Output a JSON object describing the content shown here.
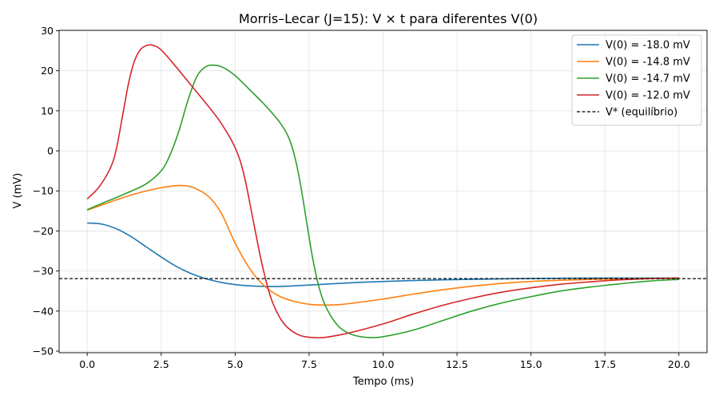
{
  "chart_data": {
    "type": "line",
    "title": "Morris–Lecar (J=15): V × t para diferentes V(0)",
    "xlabel": "Tempo (ms)",
    "ylabel": "V (mV)",
    "xlim": [
      -0.95,
      20.95
    ],
    "ylim": [
      -50.4,
      30.1
    ],
    "xticks": [
      0,
      2.5,
      5,
      7.5,
      10,
      12.5,
      15,
      17.5,
      20
    ],
    "xtick_labels": [
      "0.0",
      "2.5",
      "5.0",
      "7.5",
      "10.0",
      "12.5",
      "15.0",
      "17.5",
      "20.0"
    ],
    "yticks": [
      -50,
      -40,
      -30,
      -20,
      -10,
      0,
      10,
      20,
      30
    ],
    "ytick_labels": [
      "−50",
      "−40",
      "−30",
      "−20",
      "−10",
      "0",
      "10",
      "20",
      "30"
    ],
    "grid": true,
    "legend_position": "top-right",
    "series": [
      {
        "name": "V(0) = -18.0 mV",
        "color": "#1f77b4",
        "x": [
          0,
          0.5,
          1,
          1.5,
          2,
          2.5,
          3,
          3.5,
          4,
          4.5,
          5,
          5.5,
          6,
          6.5,
          7,
          8,
          9,
          10,
          12,
          14,
          16,
          18,
          20
        ],
        "y": [
          -18.0,
          -18.3,
          -19.5,
          -21.5,
          -24.0,
          -26.5,
          -28.8,
          -30.6,
          -31.9,
          -32.8,
          -33.4,
          -33.7,
          -33.85,
          -33.85,
          -33.7,
          -33.3,
          -32.9,
          -32.6,
          -32.2,
          -31.95,
          -31.8,
          -31.75,
          -31.75
        ]
      },
      {
        "name": "V(0) = -14.8 mV",
        "color": "#ff7f0e",
        "x": [
          0,
          0.5,
          1,
          1.5,
          2,
          2.5,
          3,
          3.3,
          3.6,
          4,
          4.3,
          4.6,
          5,
          5.5,
          6,
          6.5,
          7,
          7.5,
          8,
          8.5,
          9,
          10,
          11,
          12,
          13,
          14,
          15,
          16,
          17,
          18,
          19,
          20
        ],
        "y": [
          -14.8,
          -13.5,
          -12.2,
          -11.0,
          -10.0,
          -9.2,
          -8.7,
          -8.7,
          -9.2,
          -10.8,
          -13.0,
          -16.5,
          -23.0,
          -29.5,
          -33.8,
          -36.3,
          -37.6,
          -38.3,
          -38.5,
          -38.4,
          -38.0,
          -37.0,
          -35.8,
          -34.7,
          -33.8,
          -33.1,
          -32.6,
          -32.3,
          -32.1,
          -31.95,
          -31.85,
          -31.8
        ]
      },
      {
        "name": "V(0) = -14.7 mV",
        "color": "#2ca02c",
        "x": [
          0,
          0.5,
          1,
          1.5,
          2,
          2.5,
          2.8,
          3.1,
          3.4,
          3.7,
          4,
          4.3,
          4.6,
          5,
          5.5,
          6,
          6.5,
          6.8,
          7,
          7.2,
          7.4,
          7.6,
          7.8,
          8,
          8.3,
          8.6,
          9,
          9.5,
          10,
          11,
          12,
          13,
          14,
          15,
          16,
          17,
          18,
          19,
          20
        ],
        "y": [
          -14.7,
          -13.1,
          -11.6,
          -10.0,
          -8.2,
          -5.0,
          -1.0,
          5.0,
          12.5,
          18.5,
          21.0,
          21.4,
          20.8,
          18.8,
          15.2,
          11.5,
          7.2,
          3.5,
          -1.0,
          -8.0,
          -17.0,
          -26.0,
          -33.0,
          -37.8,
          -42.0,
          -44.5,
          -46.0,
          -46.6,
          -46.4,
          -44.8,
          -42.4,
          -40.0,
          -38.0,
          -36.4,
          -35.0,
          -34.0,
          -33.2,
          -32.5,
          -32.1
        ]
      },
      {
        "name": "V(0) = -12.0 mV",
        "color": "#d62728",
        "x": [
          0,
          0.4,
          0.8,
          1.0,
          1.2,
          1.4,
          1.6,
          1.8,
          2.0,
          2.2,
          2.5,
          3.0,
          3.5,
          4.0,
          4.5,
          5.0,
          5.3,
          5.6,
          5.9,
          6.2,
          6.5,
          6.8,
          7.2,
          7.6,
          8.0,
          8.5,
          9,
          10,
          11,
          12,
          13,
          14,
          15,
          16,
          17,
          18,
          19,
          20
        ],
        "y": [
          -12.0,
          -9.0,
          -4.0,
          1.0,
          9.0,
          17.0,
          22.5,
          25.3,
          26.3,
          26.4,
          25.2,
          21.0,
          16.5,
          12.0,
          7.2,
          0.8,
          -6.0,
          -17.0,
          -28.0,
          -36.5,
          -41.5,
          -44.3,
          -46.1,
          -46.6,
          -46.6,
          -46.0,
          -45.2,
          -43.2,
          -40.8,
          -38.6,
          -36.8,
          -35.3,
          -34.2,
          -33.3,
          -32.7,
          -32.2,
          -31.9,
          -31.75
        ]
      },
      {
        "name": "V* (equilíbrio)",
        "color": "#000000",
        "dashed": true,
        "y_constant": -31.9
      }
    ]
  }
}
